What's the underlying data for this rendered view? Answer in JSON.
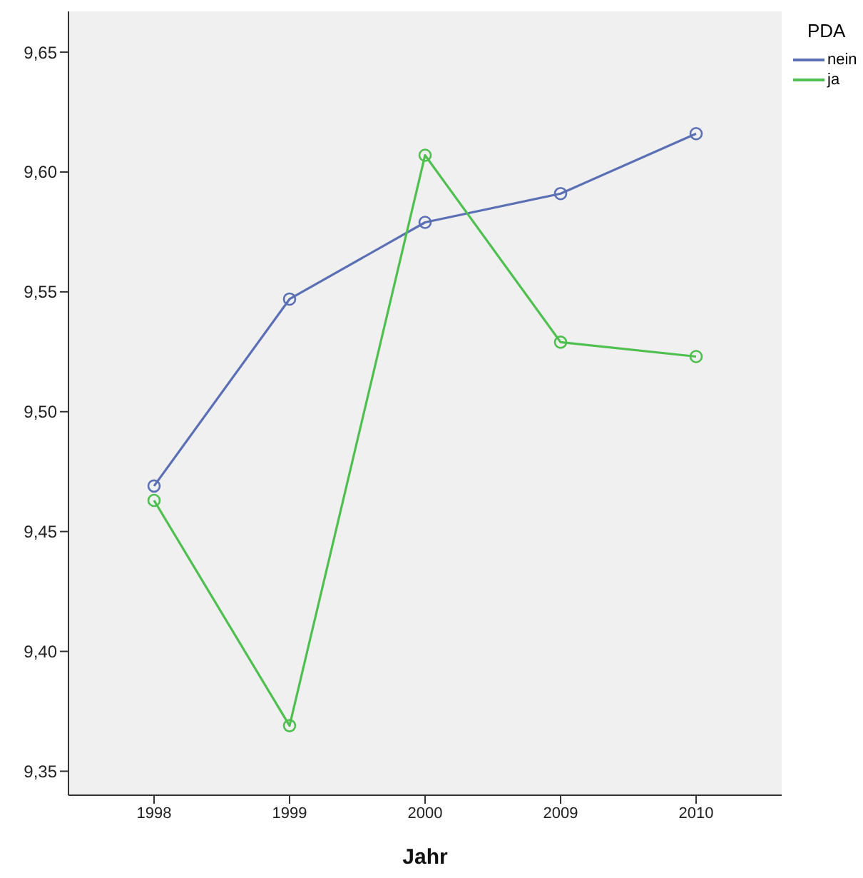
{
  "chart_data": {
    "type": "line",
    "xlabel": "Jahr",
    "legend_title": "PDA",
    "categories": [
      "1998",
      "1999",
      "2000",
      "2009",
      "2010"
    ],
    "series": [
      {
        "name": "nein",
        "color": "#5b6fb5",
        "values": [
          9.469,
          9.547,
          9.579,
          9.591,
          9.616
        ]
      },
      {
        "name": "ja",
        "color": "#4fbf4f",
        "values": [
          9.463,
          9.369,
          9.607,
          9.529,
          9.523
        ]
      }
    ],
    "ylim": [
      9.34,
      9.667
    ],
    "yticks": [
      {
        "value": 9.35,
        "label": "9,35"
      },
      {
        "value": 9.4,
        "label": "9,40"
      },
      {
        "value": 9.45,
        "label": "9,45"
      },
      {
        "value": 9.5,
        "label": "9,50"
      },
      {
        "value": 9.55,
        "label": "9,55"
      },
      {
        "value": 9.6,
        "label": "9,60"
      },
      {
        "value": 9.65,
        "label": "9,65"
      }
    ],
    "legend": "top right",
    "marker": "circle",
    "line_style": "solid",
    "grid": false
  }
}
